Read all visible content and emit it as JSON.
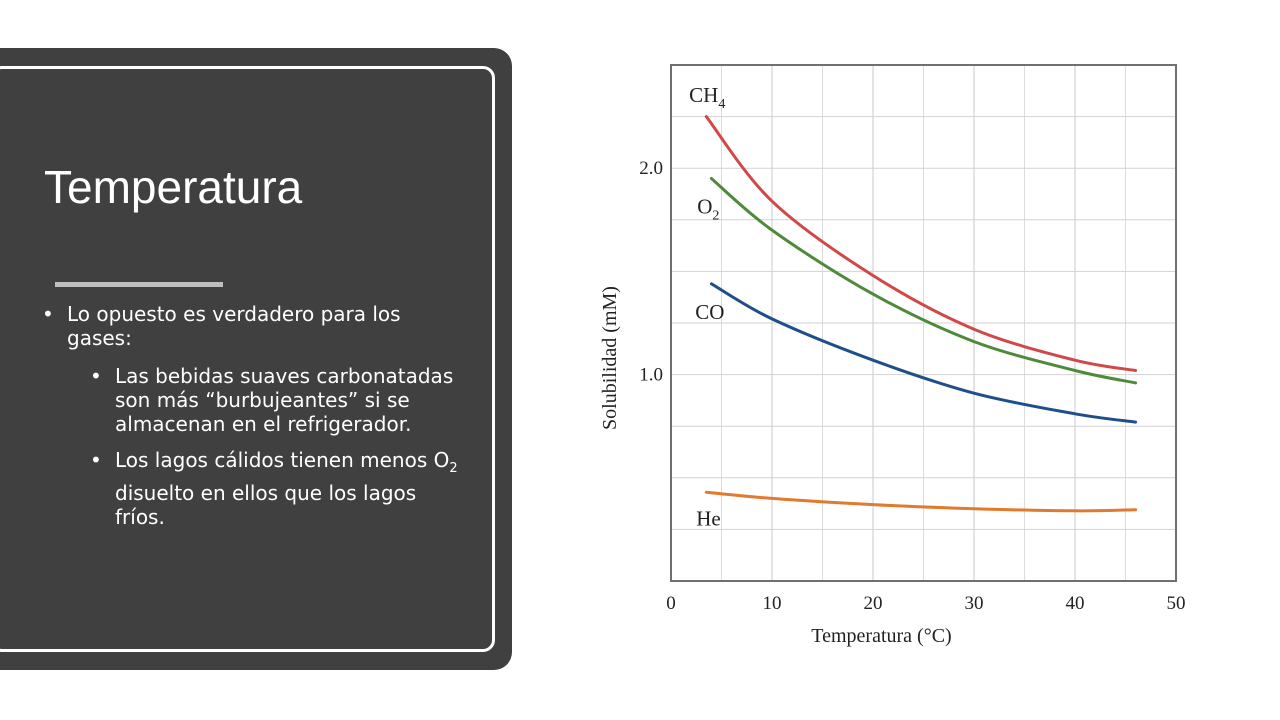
{
  "slide": {
    "title": "Temperatura",
    "bullet_1": "Lo opuesto es verdadero para los gases:",
    "sub_1": "Las bebidas suaves carbonatadas son más “burbujeantes” si se almacenan en el refrigerador.",
    "sub_2_before": "Los lagos cálidos tienen menos O",
    "sub_2_sub": "2",
    "sub_2_after": " disuelto en ellos que los lagos fríos.",
    "background_color": "#404040",
    "text_color": "#ffffff"
  },
  "chart_data": {
    "type": "line",
    "xlabel": "Temperatura (°C)",
    "ylabel": "Solubilidad (mM)",
    "xlim": [
      0,
      50
    ],
    "ylim": [
      0.0,
      2.5
    ],
    "x_ticks": [
      "0",
      "10",
      "20",
      "30",
      "40",
      "50"
    ],
    "y_ticks": [
      "1.0",
      "2.0"
    ],
    "y_tick_values": [
      1.0,
      2.0
    ],
    "grid": true,
    "series": [
      {
        "name": "CH₄",
        "label_main": "CH",
        "label_sub": "4",
        "color": "#d04848",
        "x": [
          3.5,
          10,
          20,
          30,
          40,
          46
        ],
        "y": [
          2.25,
          1.84,
          1.48,
          1.22,
          1.07,
          1.02
        ]
      },
      {
        "name": "O₂",
        "label_main": "O",
        "label_sub": "2",
        "color": "#4f8a3c",
        "x": [
          4,
          10,
          20,
          30,
          40,
          46
        ],
        "y": [
          1.95,
          1.7,
          1.39,
          1.16,
          1.02,
          0.96
        ]
      },
      {
        "name": "CO",
        "label_main": "CO",
        "label_sub": "",
        "color": "#1f4f8a",
        "x": [
          4,
          10,
          20,
          30,
          40,
          46
        ],
        "y": [
          1.44,
          1.27,
          1.07,
          0.91,
          0.81,
          0.77
        ]
      },
      {
        "name": "He",
        "label_main": "He",
        "label_sub": "",
        "color": "#e07a2e",
        "x": [
          3.5,
          10,
          20,
          30,
          40,
          46
        ],
        "y": [
          0.43,
          0.4,
          0.37,
          0.35,
          0.34,
          0.345
        ]
      }
    ]
  }
}
